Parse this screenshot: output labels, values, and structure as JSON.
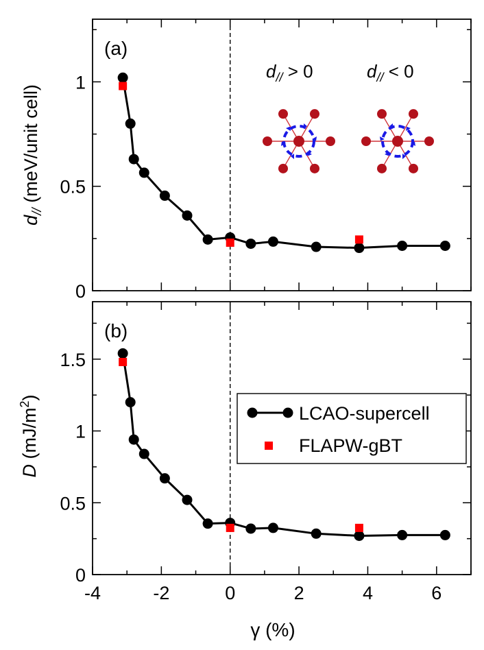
{
  "x_axis_label": "γ (%)",
  "x_ticks": [
    "-4",
    "-2",
    "0",
    "2",
    "4",
    "6"
  ],
  "legend": {
    "series1": "LCAO-supercell",
    "series2": "FLAPW-gBT"
  },
  "chart_data": [
    {
      "type": "line",
      "panel_label": "(a)",
      "ylabel_symbol": "d",
      "ylabel_sub": "//",
      "ylabel_rest": " (meV/unit cell)",
      "xlim": [
        -4,
        7
      ],
      "ylim": [
        0,
        1.3
      ],
      "y_ticks": [
        "0",
        "0.5",
        "1"
      ],
      "inset_left_label": "d// > 0",
      "inset_right_label": "d// < 0",
      "series": [
        {
          "name": "LCAO-supercell",
          "marker": "circle",
          "color": "#000000",
          "x": [
            -3.12,
            -2.9,
            -2.8,
            -2.5,
            -1.9,
            -1.25,
            -0.65,
            0.0,
            0.6,
            1.25,
            2.5,
            3.75,
            5.0,
            6.25
          ],
          "y": [
            1.02,
            0.8,
            0.63,
            0.565,
            0.455,
            0.36,
            0.245,
            0.255,
            0.225,
            0.235,
            0.21,
            0.205,
            0.215,
            0.215
          ]
        },
        {
          "name": "FLAPW-gBT",
          "marker": "square",
          "color": "#ff0000",
          "x": [
            -3.12,
            0.0,
            3.75
          ],
          "y": [
            0.98,
            0.23,
            0.245
          ]
        }
      ]
    },
    {
      "type": "line",
      "panel_label": "(b)",
      "ylabel_symbol": "D",
      "ylabel_rest": " (mJ/m",
      "ylabel_sup": "2",
      "ylabel_close": ")",
      "xlim": [
        -4,
        7
      ],
      "ylim": [
        0,
        1.9
      ],
      "y_ticks": [
        "0",
        "0.5",
        "1",
        "1.5"
      ],
      "series": [
        {
          "name": "LCAO-supercell",
          "marker": "circle",
          "color": "#000000",
          "x": [
            -3.12,
            -2.9,
            -2.8,
            -2.5,
            -1.9,
            -1.25,
            -0.65,
            0.0,
            0.6,
            1.25,
            2.5,
            3.75,
            5.0,
            6.25
          ],
          "y": [
            1.54,
            1.2,
            0.94,
            0.84,
            0.67,
            0.52,
            0.355,
            0.36,
            0.32,
            0.325,
            0.285,
            0.27,
            0.275,
            0.275
          ]
        },
        {
          "name": "FLAPW-gBT",
          "marker": "square",
          "color": "#ff0000",
          "x": [
            -3.12,
            0.0,
            3.75
          ],
          "y": [
            1.48,
            0.325,
            0.325
          ]
        }
      ]
    }
  ]
}
